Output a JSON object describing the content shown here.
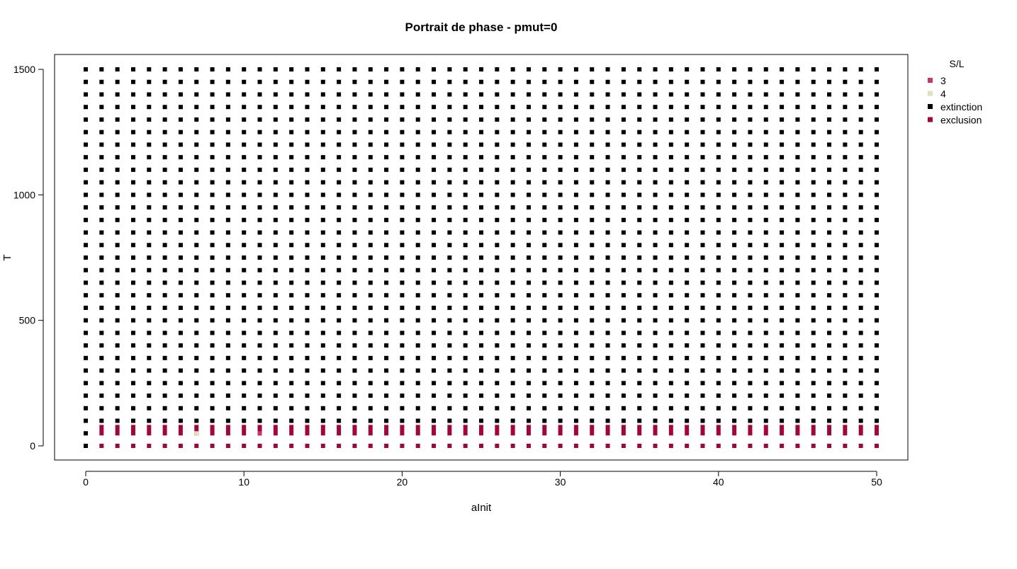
{
  "chart_data": {
    "type": "scatter",
    "title": "Portrait de phase - pmut=0",
    "xlabel": "aInit",
    "ylabel": "T",
    "xlim": [
      -2,
      52
    ],
    "ylim": [
      -60,
      1560
    ],
    "x_ticks": [
      0,
      10,
      20,
      30,
      40,
      50
    ],
    "y_ticks": [
      0,
      500,
      1000,
      1500
    ],
    "x_tick_labels": [
      "0",
      "10",
      "20",
      "30",
      "40",
      "50"
    ],
    "y_tick_labels": [
      "0",
      "500",
      "1000",
      "1500"
    ],
    "x_grid": {
      "start": 0,
      "end": 50,
      "step": 1
    },
    "y_grid": {
      "start": 0,
      "end": 1500,
      "step": 50
    },
    "grid": false,
    "legend": {
      "title": "S/L",
      "placement": "right",
      "entries": [
        {
          "label": "3",
          "color": "#cc3366"
        },
        {
          "label": "4",
          "color": "#dde2bb"
        },
        {
          "label": "extinction",
          "color": "#000000"
        },
        {
          "label": "exclusion",
          "color": "#a0063b"
        }
      ]
    },
    "series": [
      {
        "name": "3",
        "color": "#cc3366",
        "points": [
          [
            11,
            60
          ]
        ]
      },
      {
        "name": "4",
        "color": "#dde2bb",
        "points": [
          [
            7,
            60
          ]
        ]
      },
      {
        "name": "exclusion",
        "color": "#a0063b",
        "rule": "all aInit 1-50 at T=0, T=50 and T=75 (except aInit 7 and 11 at T=50)"
      },
      {
        "name": "extinction",
        "color": "#000000",
        "rule": "all remaining grid points (aInit 0-50, T 0-1500 step 50)"
      }
    ]
  }
}
